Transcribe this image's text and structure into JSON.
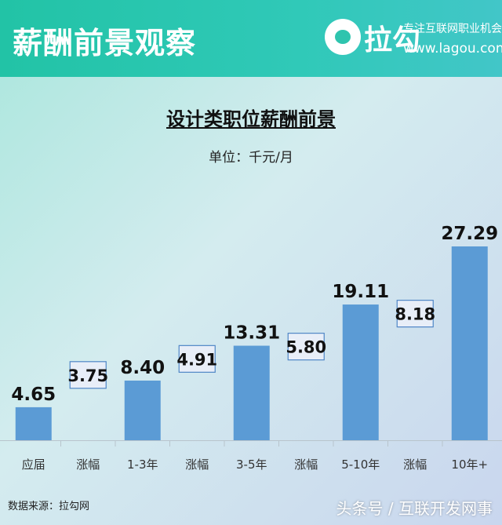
{
  "header": {
    "title": "薪酬前景观察",
    "logo_text": "拉勾",
    "slogan": "专注互联网职业机会",
    "site": "www.lagou.com"
  },
  "chart_data": {
    "type": "bar",
    "title": "设计类职位薪酬前景",
    "subtitle": "单位：千元/月",
    "categories": [
      "应届",
      "涨幅",
      "1-3年",
      "涨幅",
      "3-5年",
      "涨幅",
      "5-10年",
      "涨幅",
      "10年+"
    ],
    "values": [
      4.65,
      3.75,
      8.4,
      4.91,
      13.31,
      5.8,
      19.11,
      8.18,
      27.29
    ],
    "labels": [
      "4.65",
      "3.75",
      "8.40",
      "4.91",
      "13.31",
      "5.80",
      "19.11",
      "8.18",
      "27.29"
    ],
    "kind": [
      "bar",
      "increase",
      "bar",
      "increase",
      "bar",
      "increase",
      "bar",
      "increase",
      "bar"
    ],
    "ylim": [
      0,
      28
    ],
    "grid": false,
    "bar_color": "#5b9bd5"
  },
  "footer": {
    "source": "数据来源：拉勾网",
    "watermark": "头条号 / 互联开发网事"
  }
}
